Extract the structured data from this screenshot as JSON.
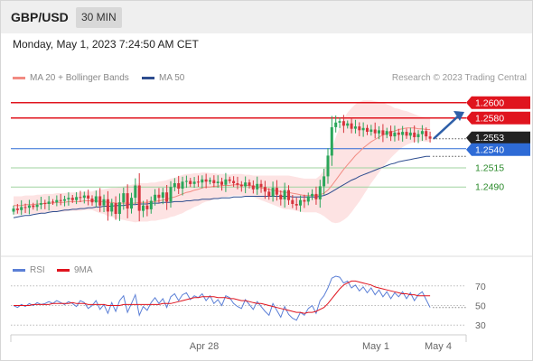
{
  "header": {
    "pair": "GBP/USD",
    "timeframe": "30 MIN"
  },
  "datetime": "Monday, May 1, 2023 7:24:50 AM CET",
  "legend": {
    "ma20": {
      "label": "MA 20 + Bollinger Bands",
      "color": "#f28b82"
    },
    "ma50": {
      "label": "MA 50",
      "color": "#2e4d8f"
    }
  },
  "credit": "Research © 2023 Trading Central",
  "rsi_legend": {
    "rsi": {
      "label": "RSI",
      "color": "#5b7fd6"
    },
    "ma9": {
      "label": "9MA",
      "color": "#e0141e"
    }
  },
  "colors": {
    "up": "#2aa65a",
    "down": "#d6343c",
    "resistance": "#e0141e",
    "support": "#3a9a3a",
    "pivot": "#2e6bd6",
    "current": "#222222",
    "bands": "#fde3e3"
  },
  "chart_data": [
    {
      "type": "candlestick",
      "title": "GBP/USD",
      "timeframe": "30 MIN",
      "xlabel": "",
      "ylabel": "",
      "x_ticks": [
        "Apr 28",
        "May 1",
        "May 4"
      ],
      "ylim": [
        1.2415,
        1.2615
      ],
      "levels": [
        {
          "label": "1.2600",
          "value": 1.26,
          "kind": "resistance"
        },
        {
          "label": "1.2580",
          "value": 1.258,
          "kind": "resistance"
        },
        {
          "label": "1.2553",
          "value": 1.2553,
          "kind": "current"
        },
        {
          "label": "1.2540",
          "value": 1.254,
          "kind": "pivot"
        },
        {
          "label": "1.2515",
          "value": 1.2515,
          "kind": "support"
        },
        {
          "label": "1.2490",
          "value": 1.249,
          "kind": "support"
        }
      ],
      "closes": [
        1.2462,
        1.246,
        1.2464,
        1.2463,
        1.2466,
        1.2464,
        1.2467,
        1.2469,
        1.2468,
        1.2471,
        1.247,
        1.2473,
        1.2472,
        1.2474,
        1.2476,
        1.2473,
        1.2477,
        1.2476,
        1.2479,
        1.2475,
        1.247,
        1.2478,
        1.2466,
        1.2474,
        1.2458,
        1.2469,
        1.2455,
        1.247,
        1.2482,
        1.2462,
        1.2476,
        1.2492,
        1.2459,
        1.2466,
        1.2461,
        1.2472,
        1.248,
        1.2476,
        1.2483,
        1.2471,
        1.249,
        1.2495,
        1.2488,
        1.2497,
        1.2498,
        1.2494,
        1.2497,
        1.2496,
        1.25,
        1.2497,
        1.2499,
        1.2495,
        1.2497,
        1.2493,
        1.25,
        1.2498,
        1.2495,
        1.2493,
        1.2491,
        1.2496,
        1.2492,
        1.2487,
        1.2494,
        1.249,
        1.2484,
        1.2478,
        1.2489,
        1.248,
        1.2474,
        1.2486,
        1.2473,
        1.2468,
        1.2466,
        1.2473,
        1.2471,
        1.2478,
        1.2481,
        1.2474,
        1.2491,
        1.2504,
        1.2531,
        1.2568,
        1.2574,
        1.2576,
        1.257,
        1.2573,
        1.2566,
        1.2569,
        1.2564,
        1.2567,
        1.2562,
        1.2565,
        1.256,
        1.2564,
        1.2558,
        1.2563,
        1.2556,
        1.2561,
        1.2558,
        1.2562,
        1.2557,
        1.2561,
        1.2555,
        1.2559,
        1.2563,
        1.2556,
        1.2553
      ],
      "ma20": [
        1.2466,
        1.2466,
        1.2466,
        1.2467,
        1.2467,
        1.2467,
        1.2468,
        1.2468,
        1.2469,
        1.2469,
        1.2469,
        1.247,
        1.247,
        1.247,
        1.2471,
        1.2471,
        1.2471,
        1.2471,
        1.2472,
        1.2472,
        1.2472,
        1.2472,
        1.2471,
        1.2471,
        1.247,
        1.247,
        1.2469,
        1.2469,
        1.2469,
        1.2469,
        1.2469,
        1.2469,
        1.247,
        1.247,
        1.247,
        1.2471,
        1.2471,
        1.2472,
        1.2473,
        1.2474,
        1.2476,
        1.2477,
        1.2479,
        1.2481,
        1.2483,
        1.2484,
        1.2486,
        1.2487,
        1.2489,
        1.249,
        1.249,
        1.2491,
        1.2491,
        1.2492,
        1.2492,
        1.2492,
        1.2493,
        1.2493,
        1.2493,
        1.2492,
        1.2492,
        1.2491,
        1.249,
        1.2489,
        1.2488,
        1.2487,
        1.2486,
        1.2485,
        1.2484,
        1.2483,
        1.2483,
        1.2482,
        1.2481,
        1.248,
        1.2479,
        1.2479,
        1.2479,
        1.2479,
        1.248,
        1.2482,
        1.2486,
        1.2492,
        1.2499,
        1.2506,
        1.2513,
        1.2519,
        1.2525,
        1.2531,
        1.2536,
        1.2541,
        1.2545,
        1.2549,
        1.2552,
        1.2555,
        1.2558,
        1.256,
        1.2562,
        1.2563,
        1.2565,
        1.2566,
        1.2567,
        1.2567,
        1.2567,
        1.2566,
        1.2566,
        1.2565,
        1.2565
      ],
      "ma50": [
        1.245,
        1.2451,
        1.2452,
        1.2453,
        1.2453,
        1.2454,
        1.2455,
        1.2456,
        1.2456,
        1.2457,
        1.2458,
        1.2458,
        1.2459,
        1.246,
        1.246,
        1.2461,
        1.2461,
        1.2462,
        1.2462,
        1.2463,
        1.2463,
        1.2464,
        1.2464,
        1.2465,
        1.2465,
        1.2465,
        1.2466,
        1.2466,
        1.2466,
        1.2467,
        1.2467,
        1.2467,
        1.2468,
        1.2468,
        1.2468,
        1.2469,
        1.2469,
        1.2469,
        1.247,
        1.247,
        1.247,
        1.2471,
        1.2471,
        1.2471,
        1.2472,
        1.2472,
        1.2473,
        1.2473,
        1.2474,
        1.2474,
        1.2474,
        1.2475,
        1.2475,
        1.2476,
        1.2476,
        1.2476,
        1.2477,
        1.2477,
        1.2477,
        1.2478,
        1.2478,
        1.2478,
        1.2478,
        1.2478,
        1.2478,
        1.2478,
        1.2478,
        1.2478,
        1.2478,
        1.2478,
        1.2478,
        1.2477,
        1.2477,
        1.2477,
        1.2477,
        1.2477,
        1.2477,
        1.2477,
        1.2478,
        1.2479,
        1.2481,
        1.2484,
        1.2487,
        1.249,
        1.2493,
        1.2496,
        1.2499,
        1.2501,
        1.2504,
        1.2506,
        1.2508,
        1.251,
        1.2512,
        1.2514,
        1.2516,
        1.2518,
        1.252,
        1.2521,
        1.2523,
        1.2524,
        1.2525,
        1.2526,
        1.2527,
        1.2528,
        1.2529,
        1.253,
        1.253
      ],
      "band_width": [
        0.0012,
        0.0012,
        0.0012,
        0.0012,
        0.0012,
        0.0012,
        0.0012,
        0.0012,
        0.0012,
        0.0012,
        0.0012,
        0.0012,
        0.0012,
        0.0012,
        0.0012,
        0.0012,
        0.0012,
        0.0012,
        0.0012,
        0.0012,
        0.0012,
        0.0014,
        0.0015,
        0.0016,
        0.0018,
        0.0019,
        0.002,
        0.0021,
        0.0022,
        0.0023,
        0.0024,
        0.0025,
        0.0025,
        0.0025,
        0.0025,
        0.0025,
        0.0025,
        0.0025,
        0.0025,
        0.0025,
        0.0025,
        0.0025,
        0.0025,
        0.0025,
        0.0024,
        0.0023,
        0.0022,
        0.0021,
        0.002,
        0.0019,
        0.0018,
        0.0017,
        0.0016,
        0.0015,
        0.0015,
        0.0014,
        0.0014,
        0.0014,
        0.0014,
        0.0014,
        0.0014,
        0.0014,
        0.0015,
        0.0016,
        0.0017,
        0.0018,
        0.0019,
        0.002,
        0.0021,
        0.0022,
        0.0022,
        0.0022,
        0.0022,
        0.0022,
        0.0022,
        0.0022,
        0.0022,
        0.0022,
        0.0025,
        0.003,
        0.0038,
        0.0048,
        0.0056,
        0.0062,
        0.0066,
        0.0068,
        0.0068,
        0.0067,
        0.0065,
        0.0062,
        0.0058,
        0.0054,
        0.005,
        0.0046,
        0.0042,
        0.0038,
        0.0034,
        0.003,
        0.0027,
        0.0024,
        0.0022,
        0.002,
        0.0018,
        0.0017,
        0.0016,
        0.0016,
        0.0016
      ],
      "forecast": {
        "from": 1.2553,
        "to": 1.2588
      }
    },
    {
      "type": "line",
      "title": "RSI",
      "ylim": [
        20,
        80
      ],
      "y_ticks": [
        "70",
        "50",
        "30"
      ],
      "series": [
        {
          "name": "RSI",
          "color": "#5b7fd6",
          "values": [
            50,
            48,
            51,
            49,
            52,
            50,
            53,
            51,
            52,
            54,
            52,
            55,
            53,
            51,
            54,
            52,
            49,
            55,
            53,
            47,
            50,
            55,
            46,
            51,
            42,
            53,
            44,
            55,
            60,
            43,
            52,
            61,
            40,
            49,
            45,
            53,
            58,
            52,
            57,
            48,
            59,
            62,
            55,
            61,
            63,
            56,
            60,
            58,
            62,
            55,
            60,
            52,
            56,
            50,
            60,
            58,
            52,
            49,
            47,
            56,
            51,
            46,
            54,
            49,
            44,
            40,
            52,
            45,
            38,
            49,
            41,
            37,
            35,
            43,
            40,
            47,
            50,
            42,
            55,
            60,
            68,
            78,
            80,
            79,
            73,
            75,
            68,
            71,
            65,
            69,
            63,
            68,
            61,
            66,
            59,
            64,
            57,
            63,
            59,
            64,
            57,
            63,
            55,
            61,
            64,
            56,
            48
          ]
        },
        {
          "name": "9MA",
          "color": "#e0141e",
          "values": [
            50,
            50,
            50,
            50,
            50,
            51,
            51,
            51,
            51,
            51,
            52,
            52,
            52,
            52,
            52,
            53,
            52,
            52,
            52,
            51,
            51,
            51,
            51,
            51,
            50,
            50,
            50,
            50,
            51,
            51,
            51,
            51,
            51,
            51,
            51,
            51,
            51,
            51,
            52,
            52,
            52,
            53,
            54,
            55,
            56,
            57,
            58,
            58,
            59,
            59,
            59,
            59,
            58,
            58,
            58,
            57,
            57,
            56,
            55,
            55,
            54,
            53,
            52,
            52,
            51,
            50,
            49,
            48,
            47,
            46,
            45,
            44,
            43,
            43,
            42,
            43,
            43,
            44,
            46,
            48,
            52,
            57,
            62,
            67,
            71,
            73,
            75,
            75,
            74,
            73,
            72,
            71,
            69,
            68,
            67,
            66,
            65,
            64,
            63,
            62,
            62,
            61,
            61,
            60,
            60,
            60,
            60
          ]
        }
      ]
    }
  ]
}
